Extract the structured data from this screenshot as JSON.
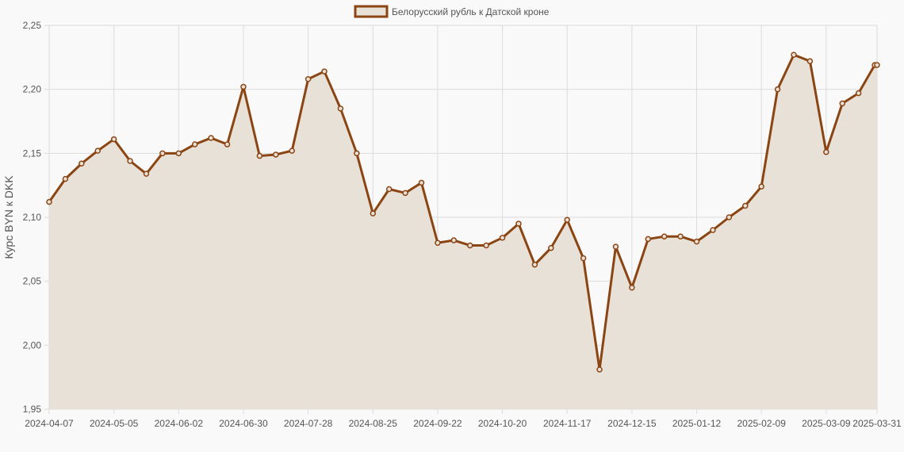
{
  "colors": {
    "line": "#8b4513",
    "fill": "#e8e1d8",
    "grid": "#dcdcdc",
    "background": "#f9f9f9"
  },
  "chart_data": {
    "type": "area",
    "legend": {
      "position": "top-center"
    },
    "ylabel": "Курс BYN к DKK",
    "ylim": [
      1.95,
      2.25
    ],
    "y_ticks": [
      "2,25",
      "2,20",
      "2,15",
      "2,10",
      "2,05",
      "2,00",
      "1,95"
    ],
    "x_ticks": [
      "2024-04-07",
      "2024-05-05",
      "2024-06-02",
      "2024-06-30",
      "2024-07-28",
      "2024-08-25",
      "2024-09-22",
      "2024-10-20",
      "2024-11-17",
      "2024-12-15",
      "2025-01-12",
      "2025-02-09",
      "2025-03-09",
      "2025-03-31"
    ],
    "grid": true,
    "series": [
      {
        "name": "Белорусский рубль к Датской кроне",
        "x": [
          "2024-04-07",
          "2024-04-14",
          "2024-04-21",
          "2024-04-28",
          "2024-05-05",
          "2024-05-12",
          "2024-05-19",
          "2024-05-26",
          "2024-06-02",
          "2024-06-09",
          "2024-06-16",
          "2024-06-23",
          "2024-06-30",
          "2024-07-07",
          "2024-07-14",
          "2024-07-21",
          "2024-07-28",
          "2024-08-04",
          "2024-08-11",
          "2024-08-18",
          "2024-08-25",
          "2024-09-01",
          "2024-09-08",
          "2024-09-15",
          "2024-09-22",
          "2024-09-29",
          "2024-10-06",
          "2024-10-13",
          "2024-10-20",
          "2024-10-27",
          "2024-11-03",
          "2024-11-10",
          "2024-11-17",
          "2024-11-24",
          "2024-12-01",
          "2024-12-08",
          "2024-12-15",
          "2024-12-22",
          "2024-12-29",
          "2025-01-05",
          "2025-01-12",
          "2025-01-19",
          "2025-01-26",
          "2025-02-02",
          "2025-02-09",
          "2025-02-16",
          "2025-02-23",
          "2025-03-02",
          "2025-03-09",
          "2025-03-16",
          "2025-03-23",
          "2025-03-30",
          "2025-03-31"
        ],
        "values": [
          2.112,
          2.13,
          2.142,
          2.152,
          2.161,
          2.144,
          2.134,
          2.15,
          2.15,
          2.157,
          2.162,
          2.157,
          2.202,
          2.148,
          2.149,
          2.152,
          2.208,
          2.214,
          2.185,
          2.15,
          2.103,
          2.122,
          2.119,
          2.127,
          2.08,
          2.082,
          2.078,
          2.078,
          2.084,
          2.095,
          2.063,
          2.076,
          2.098,
          2.068,
          1.981,
          2.077,
          2.045,
          2.083,
          2.085,
          2.085,
          2.081,
          2.09,
          2.1,
          2.109,
          2.124,
          2.2,
          2.227,
          2.222,
          2.151,
          2.189,
          2.197,
          2.219,
          2.219
        ]
      }
    ]
  }
}
